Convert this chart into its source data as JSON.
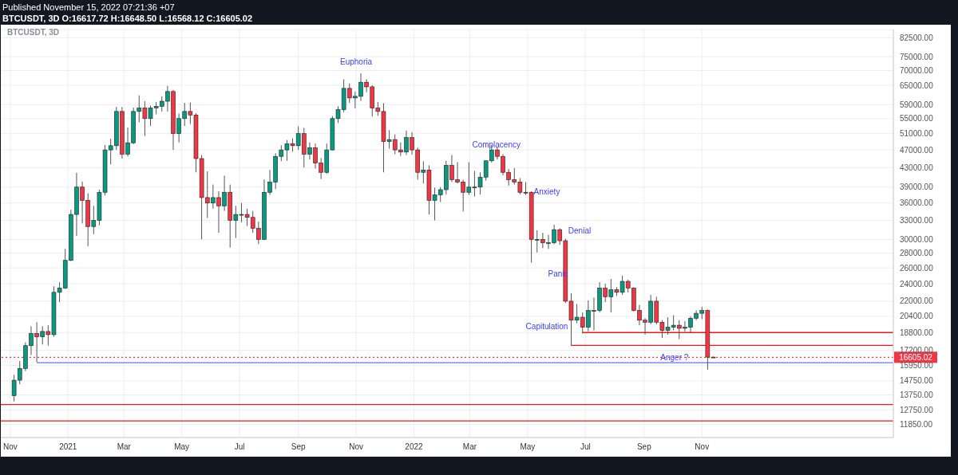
{
  "chart_data": {
    "type": "candlestick",
    "title": "BTCUSDT, 3D",
    "subtitle": "BTCUSDT, 3D  O:16617.72 H:16648.50 L:16568.12 C:16605.02",
    "annotations": [
      "Published November 15, 2022 07:21:36 +07",
      "Euphoria",
      {
        "text": "Complacency",
        "x": "2022-03-29",
        "y": 48300
      },
      "Anxiety",
      "Denial",
      "Panic",
      "Capitulation",
      {
        "text": "Anger ?",
        "x": "2022-10-03",
        "y": 16600
      }
    ],
    "x": [
      "2020-11-05",
      "2020-11-11",
      "2020-11-17",
      "2020-11-23",
      "2020-11-29",
      "2020-12-05",
      "2020-12-11",
      "2020-12-17",
      "2020-12-23",
      "2020-12-29",
      "2021-01-04",
      "2021-01-10",
      "2021-01-16",
      "2021-01-22",
      "2021-01-28",
      "2021-02-03",
      "2021-02-09",
      "2021-02-15",
      "2021-02-21",
      "2021-02-27",
      "2021-03-05",
      "2021-03-11",
      "2021-03-17",
      "2021-03-23",
      "2021-03-29",
      "2021-04-04",
      "2021-04-10",
      "2021-04-16",
      "2021-04-22",
      "2021-04-28",
      "2021-05-04",
      "2021-05-10",
      "2021-05-16",
      "2021-05-22",
      "2021-05-28",
      "2021-06-03",
      "2021-06-09",
      "2021-06-15",
      "2021-06-21",
      "2021-06-27",
      "2021-07-03",
      "2021-07-09",
      "2021-07-15",
      "2021-07-21",
      "2021-07-27",
      "2021-08-02",
      "2021-08-08",
      "2021-08-14",
      "2021-08-20",
      "2021-08-26",
      "2021-09-01",
      "2021-09-07",
      "2021-09-13",
      "2021-09-19",
      "2021-09-25",
      "2021-10-01",
      "2021-10-07",
      "2021-10-13",
      "2021-10-19",
      "2021-10-25",
      "2021-10-31",
      "2021-11-06",
      "2021-11-12",
      "2021-11-18",
      "2021-11-24",
      "2021-11-30",
      "2021-12-06",
      "2021-12-12",
      "2021-12-18",
      "2021-12-24",
      "2021-12-30",
      "2022-01-05",
      "2022-01-11",
      "2022-01-17",
      "2022-01-23",
      "2022-01-29",
      "2022-02-04",
      "2022-02-10",
      "2022-02-16",
      "2022-02-22",
      "2022-02-28",
      "2022-03-06",
      "2022-03-12",
      "2022-03-18",
      "2022-03-24",
      "2022-03-30",
      "2022-04-05",
      "2022-04-11",
      "2022-04-17",
      "2022-04-23",
      "2022-04-29",
      "2022-05-05",
      "2022-05-11",
      "2022-05-17",
      "2022-05-23",
      "2022-05-29",
      "2022-06-04",
      "2022-06-10",
      "2022-06-16",
      "2022-06-22",
      "2022-06-28",
      "2022-07-04",
      "2022-07-10",
      "2022-07-16",
      "2022-07-22",
      "2022-07-28",
      "2022-08-03",
      "2022-08-09",
      "2022-08-15",
      "2022-08-21",
      "2022-08-27",
      "2022-09-02",
      "2022-09-08",
      "2022-09-14",
      "2022-09-20",
      "2022-09-26",
      "2022-10-02",
      "2022-10-08",
      "2022-10-14",
      "2022-10-20",
      "2022-10-26",
      "2022-11-01",
      "2022-11-07",
      "2022-11-13"
    ],
    "ohlc": [
      [
        13700,
        15200,
        13300,
        14800
      ],
      [
        14800,
        16300,
        14500,
        15700
      ],
      [
        15700,
        17900,
        15500,
        17600
      ],
      [
        17600,
        19400,
        16800,
        18700
      ],
      [
        18700,
        19800,
        16200,
        18400
      ],
      [
        18400,
        19400,
        17700,
        18900
      ],
      [
        18900,
        19500,
        17600,
        18600
      ],
      [
        18600,
        23700,
        18400,
        23000
      ],
      [
        23000,
        24200,
        21900,
        23500
      ],
      [
        23500,
        28600,
        23400,
        27000
      ],
      [
        27000,
        34800,
        26900,
        34000
      ],
      [
        34000,
        41900,
        30500,
        39000
      ],
      [
        39000,
        40100,
        32500,
        36500
      ],
      [
        36500,
        37800,
        29000,
        32000
      ],
      [
        32000,
        35500,
        30800,
        33000
      ],
      [
        33000,
        38500,
        32200,
        38000
      ],
      [
        38000,
        48200,
        37400,
        47000
      ],
      [
        47000,
        49700,
        43700,
        48000
      ],
      [
        48000,
        58300,
        47000,
        57000
      ],
      [
        57000,
        58300,
        45000,
        46000
      ],
      [
        46000,
        52600,
        45500,
        48700
      ],
      [
        48700,
        58100,
        48400,
        57000
      ],
      [
        57000,
        61800,
        54000,
        58000
      ],
      [
        58000,
        60000,
        50400,
        55000
      ],
      [
        55000,
        58700,
        53000,
        58000
      ],
      [
        58000,
        59800,
        56200,
        58500
      ],
      [
        58500,
        61500,
        57000,
        60000
      ],
      [
        60000,
        64800,
        57000,
        63000
      ],
      [
        63000,
        63500,
        47000,
        51000
      ],
      [
        51000,
        56400,
        48800,
        55000
      ],
      [
        55000,
        59500,
        53000,
        57000
      ],
      [
        57000,
        59600,
        53500,
        56000
      ],
      [
        56000,
        56500,
        42000,
        45000
      ],
      [
        45000,
        45800,
        30000,
        37000
      ],
      [
        37000,
        42200,
        33400,
        36000
      ],
      [
        36000,
        39500,
        35000,
        37000
      ],
      [
        37000,
        38200,
        31000,
        35500
      ],
      [
        35500,
        41300,
        34600,
        38000
      ],
      [
        38000,
        39500,
        28800,
        33000
      ],
      [
        33000,
        35500,
        30200,
        34000
      ],
      [
        34000,
        36000,
        32700,
        34000
      ],
      [
        34000,
        35000,
        32100,
        33500
      ],
      [
        33500,
        34600,
        31000,
        31700
      ],
      [
        31700,
        32800,
        29300,
        30000
      ],
      [
        30000,
        40500,
        29900,
        38000
      ],
      [
        38000,
        42500,
        37500,
        40000
      ],
      [
        40000,
        46200,
        38600,
        45500
      ],
      [
        45500,
        48100,
        44400,
        47000
      ],
      [
        47000,
        49400,
        44500,
        48500
      ],
      [
        48500,
        49800,
        46600,
        48000
      ],
      [
        48000,
        52900,
        47000,
        51000
      ],
      [
        51000,
        52500,
        43000,
        46000
      ],
      [
        46000,
        48800,
        44800,
        47500
      ],
      [
        47500,
        48500,
        42800,
        44000
      ],
      [
        44000,
        45100,
        40600,
        42000
      ],
      [
        42000,
        48500,
        41700,
        47000
      ],
      [
        47000,
        55700,
        46900,
        55000
      ],
      [
        55000,
        58500,
        53800,
        57500
      ],
      [
        57500,
        67000,
        56800,
        64000
      ],
      [
        64000,
        65600,
        59500,
        61000
      ],
      [
        61000,
        63000,
        57900,
        61500
      ],
      [
        61500,
        69000,
        60100,
        66000
      ],
      [
        66000,
        67000,
        62800,
        64500
      ],
      [
        64500,
        65000,
        55600,
        58000
      ],
      [
        58000,
        59800,
        55800,
        57000
      ],
      [
        57000,
        59400,
        42000,
        49000
      ],
      [
        49000,
        51900,
        47300,
        49500
      ],
      [
        49500,
        50800,
        46000,
        47000
      ],
      [
        47000,
        48800,
        45600,
        46500
      ],
      [
        46500,
        51800,
        45800,
        50000
      ],
      [
        50000,
        51400,
        45900,
        47000
      ],
      [
        47000,
        47500,
        40500,
        42000
      ],
      [
        42000,
        44400,
        39700,
        42500
      ],
      [
        42500,
        43500,
        34000,
        36500
      ],
      [
        36500,
        38900,
        33000,
        37500
      ],
      [
        37500,
        39000,
        36200,
        38500
      ],
      [
        38500,
        44500,
        37600,
        43500
      ],
      [
        43500,
        45800,
        40000,
        40500
      ],
      [
        40500,
        44200,
        39700,
        40000
      ],
      [
        40000,
        40500,
        34500,
        38000
      ],
      [
        38000,
        44200,
        37500,
        39000
      ],
      [
        39000,
        42300,
        37200,
        39000
      ],
      [
        39000,
        42000,
        37600,
        41000
      ],
      [
        41000,
        44600,
        40300,
        44500
      ],
      [
        44500,
        48200,
        44100,
        47000
      ],
      [
        47000,
        47700,
        44800,
        45500
      ],
      [
        45500,
        46000,
        41400,
        42000
      ],
      [
        42000,
        42700,
        39300,
        40500
      ],
      [
        40500,
        42900,
        39500,
        40000
      ],
      [
        40000,
        40800,
        37600,
        38000
      ],
      [
        38000,
        40000,
        37500,
        38000
      ],
      [
        38000,
        38200,
        26700,
        30000
      ],
      [
        30000,
        31400,
        28100,
        30000
      ],
      [
        30000,
        31000,
        28700,
        29500
      ],
      [
        29500,
        30700,
        28600,
        29500
      ],
      [
        29500,
        32300,
        29300,
        31500
      ],
      [
        31500,
        31700,
        29200,
        29800
      ],
      [
        29800,
        30100,
        21800,
        22000
      ],
      [
        22000,
        22900,
        17600,
        20000
      ],
      [
        20000,
        21700,
        19700,
        20300
      ],
      [
        20300,
        20800,
        18700,
        19300
      ],
      [
        19300,
        22100,
        18900,
        21000
      ],
      [
        21000,
        22400,
        19000,
        21000
      ],
      [
        21000,
        24200,
        20800,
        23500
      ],
      [
        23500,
        24000,
        21900,
        22500
      ],
      [
        22500,
        24600,
        20800,
        23300
      ],
      [
        23300,
        23600,
        22600,
        23000
      ],
      [
        23000,
        25000,
        22700,
        24300
      ],
      [
        24300,
        24500,
        23000,
        23500
      ],
      [
        23500,
        23600,
        20900,
        21000
      ],
      [
        21000,
        21600,
        19500,
        20000
      ],
      [
        20000,
        20200,
        18600,
        19800
      ],
      [
        19800,
        22700,
        19600,
        22000
      ],
      [
        22000,
        22500,
        19600,
        19800
      ],
      [
        19800,
        20000,
        18300,
        19000
      ],
      [
        19000,
        20300,
        18600,
        19300
      ],
      [
        19300,
        20500,
        19000,
        19500
      ],
      [
        19500,
        20000,
        18200,
        19200
      ],
      [
        19200,
        19900,
        18900,
        19300
      ],
      [
        19300,
        20400,
        18800,
        20200
      ],
      [
        20200,
        21000,
        20000,
        20700
      ],
      [
        20700,
        21400,
        20100,
        21000
      ],
      [
        21000,
        21100,
        15600,
        16617.72
      ],
      [
        16617.72,
        16648.5,
        16568.12,
        16605.02
      ]
    ],
    "series": [
      {
        "type": "line",
        "x": [
          "2020-11-29",
          "2023-05-22"
        ],
        "values": [
          16160,
          16160
        ],
        "color": "#6b6bff"
      },
      {
        "type": "line",
        "x": [
          "2022-06-16",
          "2023-05-22"
        ],
        "values": [
          17620,
          17620
        ],
        "color": "#f01818"
      },
      {
        "type": "line",
        "x": [
          "2022-06-28",
          "2023-05-22"
        ],
        "values": [
          18800,
          18800
        ],
        "color": "#f01818"
      }
    ],
    "ref_lines": [
      {
        "axis": "y",
        "value": 13100,
        "color": "#f01818"
      },
      {
        "axis": "y",
        "value": 12070,
        "color": "#f01818"
      },
      {
        "axis": "y",
        "value": 16605.02,
        "label": "16605.02",
        "color": "#f23645",
        "line_style": "dotted"
      }
    ],
    "xlim": [
      "2020-10-22",
      "2023-05-22"
    ],
    "xticks": [
      {
        "value": "2020-11-01",
        "label": "Nov"
      },
      {
        "value": "2021-01-01",
        "label": "2021"
      },
      {
        "value": "2021-03-01",
        "label": "Mar"
      },
      {
        "value": "2021-05-01",
        "label": "May"
      },
      {
        "value": "2021-07-01",
        "label": "Jul"
      },
      {
        "value": "2021-09-01",
        "label": "Sep"
      },
      {
        "value": "2021-11-01",
        "label": "Nov"
      },
      {
        "value": "2022-01-01",
        "label": "2022"
      },
      {
        "value": "2022-03-01",
        "label": "Mar"
      },
      {
        "value": "2022-05-01",
        "label": "May"
      },
      {
        "value": "2022-07-01",
        "label": "Jul"
      },
      {
        "value": "2022-09-01",
        "label": "Sep"
      },
      {
        "value": "2022-11-01",
        "label": "Nov"
      }
    ],
    "ylim": [
      11100,
      86000
    ],
    "log": true,
    "yticks": [
      {
        "value": 11850,
        "label": "11850.00"
      },
      {
        "value": 12750,
        "label": "12750.00"
      },
      {
        "value": 13750,
        "label": "13750.00"
      },
      {
        "value": 14750,
        "label": "14750.00"
      },
      {
        "value": 15950,
        "label": "15950.00"
      },
      {
        "value": 17200,
        "label": "17200.00"
      },
      {
        "value": 18800,
        "label": "18800.00"
      },
      {
        "value": 20400,
        "label": "20400.00"
      },
      {
        "value": 22000,
        "label": "22000.00"
      },
      {
        "value": 24000,
        "label": "24000.00"
      },
      {
        "value": 26000,
        "label": "26000.00"
      },
      {
        "value": 28000,
        "label": "28000.00"
      },
      {
        "value": 30000,
        "label": "30000.00"
      },
      {
        "value": 33000,
        "label": "33000.00"
      },
      {
        "value": 36000,
        "label": "36000.00"
      },
      {
        "value": 39000,
        "label": "39000.00"
      },
      {
        "value": 43000,
        "label": "43000.00"
      },
      {
        "value": 47000,
        "label": "47000.00"
      },
      {
        "value": 51000,
        "label": "51000.00"
      },
      {
        "value": 55000,
        "label": "55000.00"
      },
      {
        "value": 59000,
        "label": "59000.00"
      },
      {
        "value": 65000,
        "label": "65000.00"
      },
      {
        "value": 70000,
        "label": "70000.00"
      },
      {
        "value": 75000,
        "label": "75000.00"
      },
      {
        "value": 82500,
        "label": "82500.00"
      }
    ],
    "grid": true
  }
}
